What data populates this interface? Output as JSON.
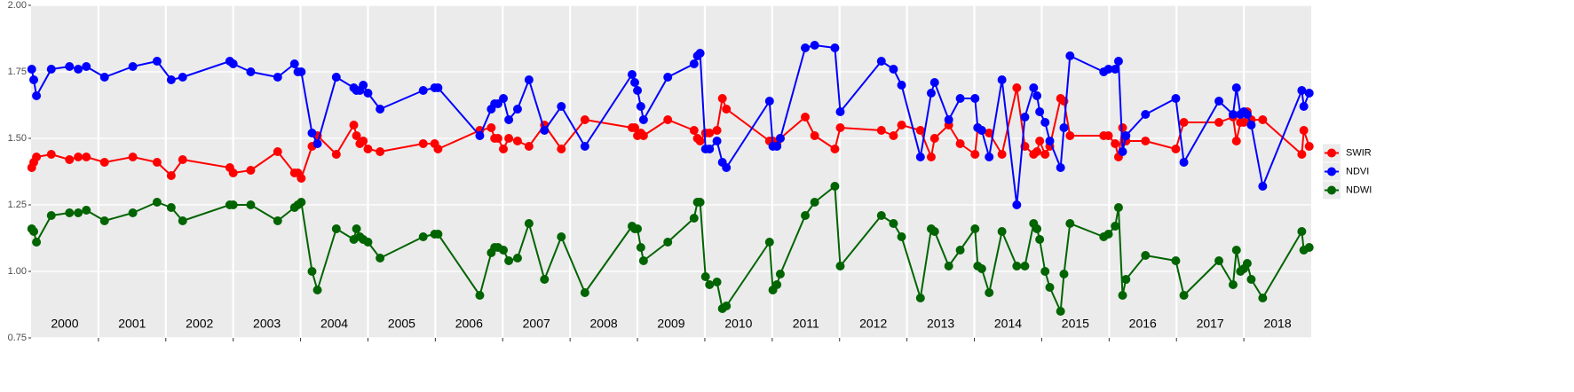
{
  "chart_data": {
    "type": "line",
    "x": [
      2000.01,
      2000.04,
      2000.08,
      2000.3,
      2000.57,
      2000.7,
      2000.82,
      2001.09,
      2001.51,
      2001.87,
      2002.08,
      2002.25,
      2002.95,
      2003.0,
      2003.26,
      2003.66,
      2003.91,
      2003.96,
      2004.01,
      2004.17,
      2004.25,
      2004.53,
      2004.79,
      2004.83,
      2004.88,
      2004.93,
      2005.0,
      2005.18,
      2005.82,
      2005.99,
      2006.04,
      2006.66,
      2006.83,
      2006.88,
      2006.93,
      2007.01,
      2007.09,
      2007.22,
      2007.39,
      2007.62,
      2007.87,
      2008.22,
      2008.92,
      2008.96,
      2009.0,
      2009.05,
      2009.09,
      2009.45,
      2009.84,
      2009.89,
      2009.93,
      2010.01,
      2010.07,
      2010.18,
      2010.26,
      2010.32,
      2010.96,
      2011.01,
      2011.07,
      2011.12,
      2011.49,
      2011.63,
      2011.93,
      2012.01,
      2012.62,
      2012.8,
      2012.92,
      2013.2,
      2013.36,
      2013.41,
      2013.62,
      2013.79,
      2014.01,
      2014.05,
      2014.11,
      2014.22,
      2014.41,
      2014.63,
      2014.75,
      2014.88,
      2014.93,
      2014.97,
      2015.05,
      2015.12,
      2015.28,
      2015.33,
      2015.42,
      2015.92,
      2015.99,
      2016.09,
      2016.14,
      2016.2,
      2016.25,
      2016.54,
      2016.99,
      2017.11,
      2017.63,
      2017.84,
      2017.89,
      2017.95,
      2018.0,
      2018.05,
      2018.11,
      2018.28,
      2018.86,
      2018.89,
      2018.97
    ],
    "series": [
      {
        "name": "SWIR",
        "color": "#ff0000",
        "values": [
          1.39,
          1.41,
          1.43,
          1.44,
          1.42,
          1.43,
          1.43,
          1.41,
          1.43,
          1.41,
          1.36,
          1.42,
          1.39,
          1.37,
          1.38,
          1.45,
          1.37,
          1.37,
          1.35,
          1.47,
          1.51,
          1.44,
          1.55,
          1.51,
          1.48,
          1.49,
          1.46,
          1.45,
          1.48,
          1.48,
          1.46,
          1.53,
          1.54,
          1.5,
          1.5,
          1.46,
          1.5,
          1.49,
          1.47,
          1.55,
          1.46,
          1.57,
          1.54,
          1.54,
          1.51,
          1.52,
          1.51,
          1.57,
          1.53,
          1.5,
          1.49,
          1.52,
          1.52,
          1.53,
          1.65,
          1.61,
          1.49,
          1.49,
          1.48,
          1.5,
          1.58,
          1.51,
          1.46,
          1.54,
          1.53,
          1.51,
          1.55,
          1.53,
          1.43,
          1.5,
          1.55,
          1.48,
          1.44,
          1.54,
          1.53,
          1.52,
          1.44,
          1.69,
          1.47,
          1.44,
          1.45,
          1.49,
          1.44,
          1.47,
          1.65,
          1.64,
          1.51,
          1.51,
          1.51,
          1.48,
          1.43,
          1.54,
          1.49,
          1.49,
          1.46,
          1.56,
          1.56,
          1.58,
          1.49,
          1.56,
          1.56,
          1.6,
          1.57,
          1.57,
          1.44,
          1.53,
          1.47
        ]
      },
      {
        "name": "NDVI",
        "color": "#0000ff",
        "values": [
          1.76,
          1.72,
          1.66,
          1.76,
          1.77,
          1.76,
          1.77,
          1.73,
          1.77,
          1.79,
          1.72,
          1.73,
          1.79,
          1.78,
          1.75,
          1.73,
          1.78,
          1.75,
          1.75,
          1.52,
          1.48,
          1.73,
          1.69,
          1.68,
          1.68,
          1.7,
          1.67,
          1.61,
          1.68,
          1.69,
          1.69,
          1.51,
          1.61,
          1.63,
          1.63,
          1.65,
          1.57,
          1.61,
          1.72,
          1.53,
          1.62,
          1.47,
          1.74,
          1.71,
          1.68,
          1.62,
          1.57,
          1.73,
          1.78,
          1.81,
          1.82,
          1.46,
          1.46,
          1.49,
          1.41,
          1.39,
          1.64,
          1.47,
          1.47,
          1.5,
          1.84,
          1.85,
          1.84,
          1.6,
          1.79,
          1.76,
          1.7,
          1.43,
          1.67,
          1.71,
          1.57,
          1.65,
          1.65,
          1.54,
          1.53,
          1.43,
          1.72,
          1.25,
          1.58,
          1.69,
          1.66,
          1.6,
          1.56,
          1.49,
          1.39,
          1.54,
          1.81,
          1.75,
          1.76,
          1.76,
          1.79,
          1.45,
          1.51,
          1.59,
          1.65,
          1.41,
          1.64,
          1.59,
          1.69,
          1.59,
          1.6,
          1.59,
          1.55,
          1.32,
          1.68,
          1.62,
          1.67
        ]
      },
      {
        "name": "NDWI",
        "color": "#006400",
        "values": [
          1.16,
          1.15,
          1.11,
          1.21,
          1.22,
          1.22,
          1.23,
          1.19,
          1.22,
          1.26,
          1.24,
          1.19,
          1.25,
          1.25,
          1.25,
          1.19,
          1.24,
          1.25,
          1.26,
          1.0,
          0.93,
          1.16,
          1.12,
          1.16,
          1.13,
          1.12,
          1.11,
          1.05,
          1.13,
          1.14,
          1.14,
          0.91,
          1.07,
          1.09,
          1.09,
          1.08,
          1.04,
          1.05,
          1.18,
          0.97,
          1.13,
          0.92,
          1.17,
          1.16,
          1.16,
          1.09,
          1.04,
          1.11,
          1.2,
          1.26,
          1.26,
          0.98,
          0.95,
          0.96,
          0.86,
          0.87,
          1.11,
          0.93,
          0.95,
          0.99,
          1.21,
          1.26,
          1.32,
          1.02,
          1.21,
          1.18,
          1.13,
          0.9,
          1.16,
          1.15,
          1.02,
          1.08,
          1.16,
          1.02,
          1.01,
          0.92,
          1.15,
          1.02,
          1.02,
          1.18,
          1.16,
          1.12,
          1.0,
          0.94,
          0.85,
          0.99,
          1.18,
          1.13,
          1.14,
          1.17,
          1.24,
          0.91,
          0.97,
          1.06,
          1.04,
          0.91,
          1.04,
          0.95,
          1.08,
          1.0,
          1.01,
          1.03,
          0.97,
          0.9,
          1.15,
          1.08,
          1.09
        ]
      }
    ],
    "xlim": [
      2000,
      2019
    ],
    "xticks": [
      {
        "value": 2000.5,
        "label": "2000"
      },
      {
        "value": 2001.5,
        "label": "2001"
      },
      {
        "value": 2002.5,
        "label": "2002"
      },
      {
        "value": 2003.5,
        "label": "2003"
      },
      {
        "value": 2004.5,
        "label": "2004"
      },
      {
        "value": 2005.5,
        "label": "2005"
      },
      {
        "value": 2006.5,
        "label": "2006"
      },
      {
        "value": 2007.5,
        "label": "2007"
      },
      {
        "value": 2008.5,
        "label": "2008"
      },
      {
        "value": 2009.5,
        "label": "2009"
      },
      {
        "value": 2010.5,
        "label": "2010"
      },
      {
        "value": 2011.5,
        "label": "2011"
      },
      {
        "value": 2012.5,
        "label": "2012"
      },
      {
        "value": 2013.5,
        "label": "2013"
      },
      {
        "value": 2014.5,
        "label": "2014"
      },
      {
        "value": 2015.5,
        "label": "2015"
      },
      {
        "value": 2016.5,
        "label": "2016"
      },
      {
        "value": 2017.5,
        "label": "2017"
      },
      {
        "value": 2018.5,
        "label": "2018"
      }
    ],
    "ylim": [
      0.75,
      2.0
    ],
    "yticks": [
      0.75,
      {
        "value": 1,
        "label": "1.00"
      },
      1.25,
      {
        "value": 1.5,
        "label": "1.50"
      },
      1.75,
      {
        "value": 2,
        "label": "2.00"
      }
    ],
    "grid": true,
    "legend": "right"
  }
}
